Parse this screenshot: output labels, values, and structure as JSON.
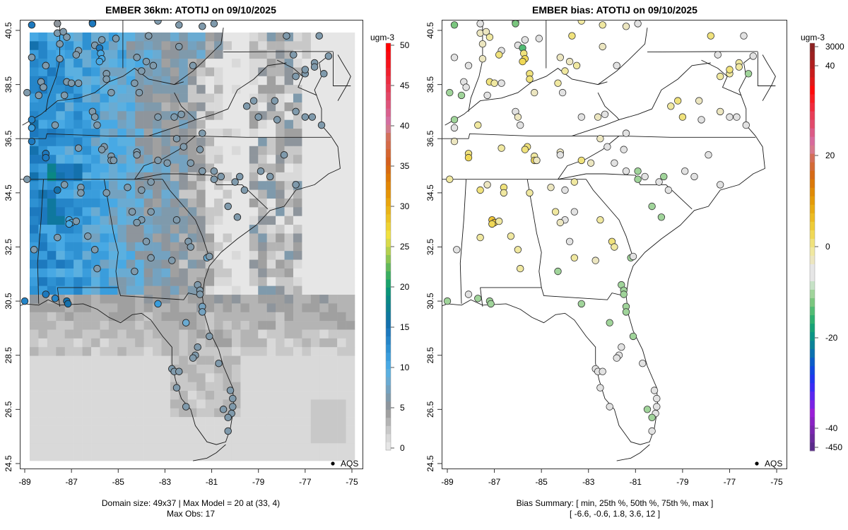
{
  "chart_data": [
    {
      "type": "heatmap",
      "title": "EMBER 36km: ATOTIJ on 09/10/2025",
      "xlabel": "",
      "ylabel": "",
      "xlim": [
        -89.2,
        -74.6
      ],
      "ylim": [
        24.3,
        40.9
      ],
      "x_ticks": [
        "-89",
        "-87",
        "-85",
        "-83",
        "-81",
        "-79",
        "-77",
        "-75"
      ],
      "x_tick_values": [
        -89,
        -87,
        -85,
        -83,
        -81,
        -79,
        -77,
        -75
      ],
      "y_ticks": [
        "24.5",
        "26.5",
        "28.5",
        "30.5",
        "32.5",
        "34.5",
        "36.5",
        "38.5",
        "40.5"
      ],
      "y_tick_values": [
        24.5,
        26.5,
        28.5,
        30.5,
        32.5,
        34.5,
        36.5,
        38.5,
        40.5
      ],
      "colorbar": {
        "unit": "ugm-3",
        "range": [
          0,
          50
        ],
        "ticks": [
          "0",
          "5",
          "10",
          "15",
          "20",
          "25",
          "30",
          "35",
          "40",
          "45",
          "50"
        ],
        "tick_values": [
          0,
          5,
          10,
          15,
          20,
          25,
          30,
          35,
          40,
          45,
          50
        ],
        "colors": [
          "#e6e6e6",
          "#d9d9d9",
          "#c8c8c8",
          "#b4b4b4",
          "#a0a0a0",
          "#8e959c",
          "#7f9aac",
          "#74a2c0",
          "#6aabd2",
          "#5bb0e0",
          "#48a9e4",
          "#3a9ddc",
          "#2e91d2",
          "#2585c8",
          "#1d79be",
          "#1471ad",
          "#0f789e",
          "#0c8090",
          "#0a8884",
          "#0a9478",
          "#1aa26b",
          "#3aae60",
          "#62b85a",
          "#8cc553",
          "#b4d04e",
          "#d8da4a",
          "#f0e140",
          "#eed232",
          "#ecc224",
          "#eab417",
          "#e9a50d",
          "#e59407",
          "#e28605",
          "#dd7806",
          "#d86a10",
          "#d45f1e",
          "#d5652f",
          "#d46a48",
          "#d3705b",
          "#d27a8c",
          "#d46ea0",
          "#d9608e",
          "#de537a",
          "#e34666",
          "#e73953",
          "#ec2c40",
          "#f01f2d",
          "#f5131c",
          "#fa0810",
          "#ff0000"
        ]
      },
      "summary_line1": "Domain size: 49x37 | Max Model = 20 at (33, 4)",
      "summary_line2": "Max Obs: 17",
      "legend": {
        "label": "AQS",
        "position": "bottom-right"
      },
      "grid_cols": 37,
      "grid_rows": 49,
      "stations_fill": "observed value colored on same scale"
    },
    {
      "type": "scatter",
      "title": "EMBER bias: ATOTIJ on 09/10/2025",
      "xlabel": "",
      "ylabel": "",
      "xlim": [
        -89.2,
        -74.6
      ],
      "ylim": [
        24.3,
        40.9
      ],
      "x_ticks": [
        "-89",
        "-87",
        "-85",
        "-83",
        "-81",
        "-79",
        "-77",
        "-75"
      ],
      "x_tick_values": [
        -89,
        -87,
        -85,
        -83,
        -81,
        -79,
        -77,
        -75
      ],
      "y_ticks": [
        "24.5",
        "26.5",
        "28.5",
        "30.5",
        "32.5",
        "34.5",
        "36.5",
        "38.5",
        "40.5"
      ],
      "y_tick_values": [
        24.5,
        26.5,
        28.5,
        30.5,
        32.5,
        34.5,
        36.5,
        38.5,
        40.5
      ],
      "colorbar": {
        "unit": "ugm-3",
        "ticks": [
          "-450",
          "-40",
          "-20",
          "0",
          "20",
          "40",
          "3000"
        ],
        "colors": [
          "#5a2a8a",
          "#6a2a9c",
          "#7a26b0",
          "#8a22c4",
          "#9a1ed8",
          "#7a22e6",
          "#5a26f0",
          "#3a2af6",
          "#2036f0",
          "#1048e0",
          "#0a5cc8",
          "#0a70b0",
          "#0a8298",
          "#0a9486",
          "#16a276",
          "#2eb070",
          "#52bc74",
          "#7ac67e",
          "#a0d49a",
          "#c6e2c6",
          "#e6e6e6",
          "#e6e6e6",
          "#ece6c0",
          "#f0e8a0",
          "#f0e27c",
          "#f0d856",
          "#eecb36",
          "#ecbb22",
          "#e8ab12",
          "#e49a08",
          "#e08a06",
          "#db7808",
          "#d66a16",
          "#d46a36",
          "#d46e58",
          "#d8788c",
          "#d86a9c",
          "#dc5a86",
          "#e24a6c",
          "#e83c56",
          "#f02a3c",
          "#f81c22",
          "#ff0a0a",
          "#e01818",
          "#c81c1c",
          "#b01e1e",
          "#9c2020",
          "#8c2222"
        ],
        "tick_fracs_note": "nonlinear scale"
      },
      "summary_line1": "Bias Summary: [ min, 25th %, 50th %, 75th %, max ]",
      "summary_line2": "[ -6.6,   -0.6,   1.8,   3.6,   12 ]",
      "bias_summary": {
        "min": -6.6,
        "p25": -0.6,
        "p50": 1.8,
        "p75": 3.6,
        "max": 12
      },
      "legend": {
        "label": "AQS",
        "position": "bottom-right"
      }
    }
  ]
}
